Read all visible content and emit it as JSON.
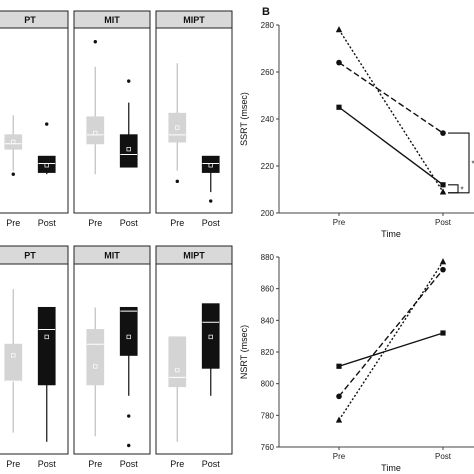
{
  "panel_b_label": "B",
  "chart_data": [
    {
      "id": "box-top",
      "type": "box",
      "facets": [
        "PT",
        "MIT",
        "MIPT"
      ],
      "categories": [
        "Pre",
        "Post"
      ],
      "ylim": [
        0,
        100
      ],
      "boxes": [
        {
          "facet": "PT",
          "category": "Pre",
          "whisker_low": 22,
          "q1": 34,
          "median": 37,
          "q3": 42,
          "whisker_high": 53,
          "mean": 38,
          "outliers": [
            20
          ]
        },
        {
          "facet": "PT",
          "category": "Post",
          "whisker_low": 20,
          "q1": 21,
          "median": 26,
          "q3": 30,
          "whisker_high": 30,
          "mean": 25,
          "outliers": [
            48
          ]
        },
        {
          "facet": "MIT",
          "category": "Pre",
          "whisker_low": 20,
          "q1": 37,
          "median": 42,
          "q3": 52,
          "whisker_high": 80,
          "mean": 43,
          "outliers": [
            94
          ]
        },
        {
          "facet": "MIT",
          "category": "Post",
          "whisker_low": 24,
          "q1": 24,
          "median": 31,
          "q3": 42,
          "whisker_high": 60,
          "mean": 34,
          "outliers": [
            72
          ]
        },
        {
          "facet": "MIPT",
          "category": "Pre",
          "whisker_low": 22,
          "q1": 38,
          "median": 42,
          "q3": 54,
          "whisker_high": 82,
          "mean": 46,
          "outliers": [
            16
          ]
        },
        {
          "facet": "MIPT",
          "category": "Post",
          "whisker_low": 10,
          "q1": 21,
          "median": 26,
          "q3": 30,
          "whisker_high": 30,
          "mean": 25,
          "outliers": [
            5
          ]
        }
      ]
    },
    {
      "id": "box-bottom",
      "type": "box",
      "facets": [
        "PT",
        "MIT",
        "MIPT"
      ],
      "categories": [
        "Pre",
        "Post"
      ],
      "ylim": [
        0,
        100
      ],
      "boxes": [
        {
          "facet": "PT",
          "category": "Pre",
          "whisker_low": 10,
          "q1": 38,
          "median": 38,
          "q3": 58,
          "whisker_high": 88,
          "mean": 52,
          "outliers": []
        },
        {
          "facet": "PT",
          "category": "Post",
          "whisker_low": 5,
          "q1": 36,
          "median": 66,
          "q3": 78,
          "whisker_high": 78,
          "mean": 62,
          "outliers": []
        },
        {
          "facet": "MIT",
          "category": "Pre",
          "whisker_low": 8,
          "q1": 36,
          "median": 58,
          "q3": 66,
          "whisker_high": 78,
          "mean": 46,
          "outliers": []
        },
        {
          "facet": "MIT",
          "category": "Post",
          "whisker_low": 30,
          "q1": 52,
          "median": 76,
          "q3": 78,
          "whisker_high": 78,
          "mean": 62,
          "outliers": [
            19,
            3
          ]
        },
        {
          "facet": "MIPT",
          "category": "Pre",
          "whisker_low": 5,
          "q1": 35,
          "median": 40,
          "q3": 62,
          "whisker_high": 62,
          "mean": 44,
          "outliers": []
        },
        {
          "facet": "MIPT",
          "category": "Post",
          "whisker_low": 30,
          "q1": 45,
          "median": 70,
          "q3": 80,
          "whisker_high": 80,
          "mean": 62,
          "outliers": []
        }
      ]
    },
    {
      "id": "line-ssrt",
      "type": "line",
      "x": [
        "Pre",
        "Post"
      ],
      "xlabel": "Time",
      "ylabel": "SSRT (msec)",
      "ylim": [
        200,
        280
      ],
      "yticks": [
        200,
        220,
        240,
        260,
        280
      ],
      "series": [
        {
          "marker": "triangle",
          "dash": "dotted",
          "values": [
            278,
            209
          ]
        },
        {
          "marker": "circle",
          "dash": "dashed",
          "values": [
            264,
            234
          ]
        },
        {
          "marker": "square",
          "dash": "solid",
          "values": [
            245,
            212
          ]
        }
      ],
      "annotations": {
        "brackets": 2,
        "significance": [
          "*",
          "*"
        ]
      }
    },
    {
      "id": "line-nsrt",
      "type": "line",
      "x": [
        "Pre",
        "Post"
      ],
      "xlabel": "Time",
      "ylabel": "NSRT (msec)",
      "ylim": [
        760,
        880
      ],
      "yticks": [
        760,
        780,
        800,
        820,
        840,
        860,
        880
      ],
      "series": [
        {
          "marker": "triangle",
          "dash": "dotted",
          "values": [
            777,
            877
          ]
        },
        {
          "marker": "circle",
          "dash": "dashed",
          "values": [
            792,
            872
          ]
        },
        {
          "marker": "square",
          "dash": "solid",
          "values": [
            811,
            832
          ]
        }
      ]
    }
  ]
}
